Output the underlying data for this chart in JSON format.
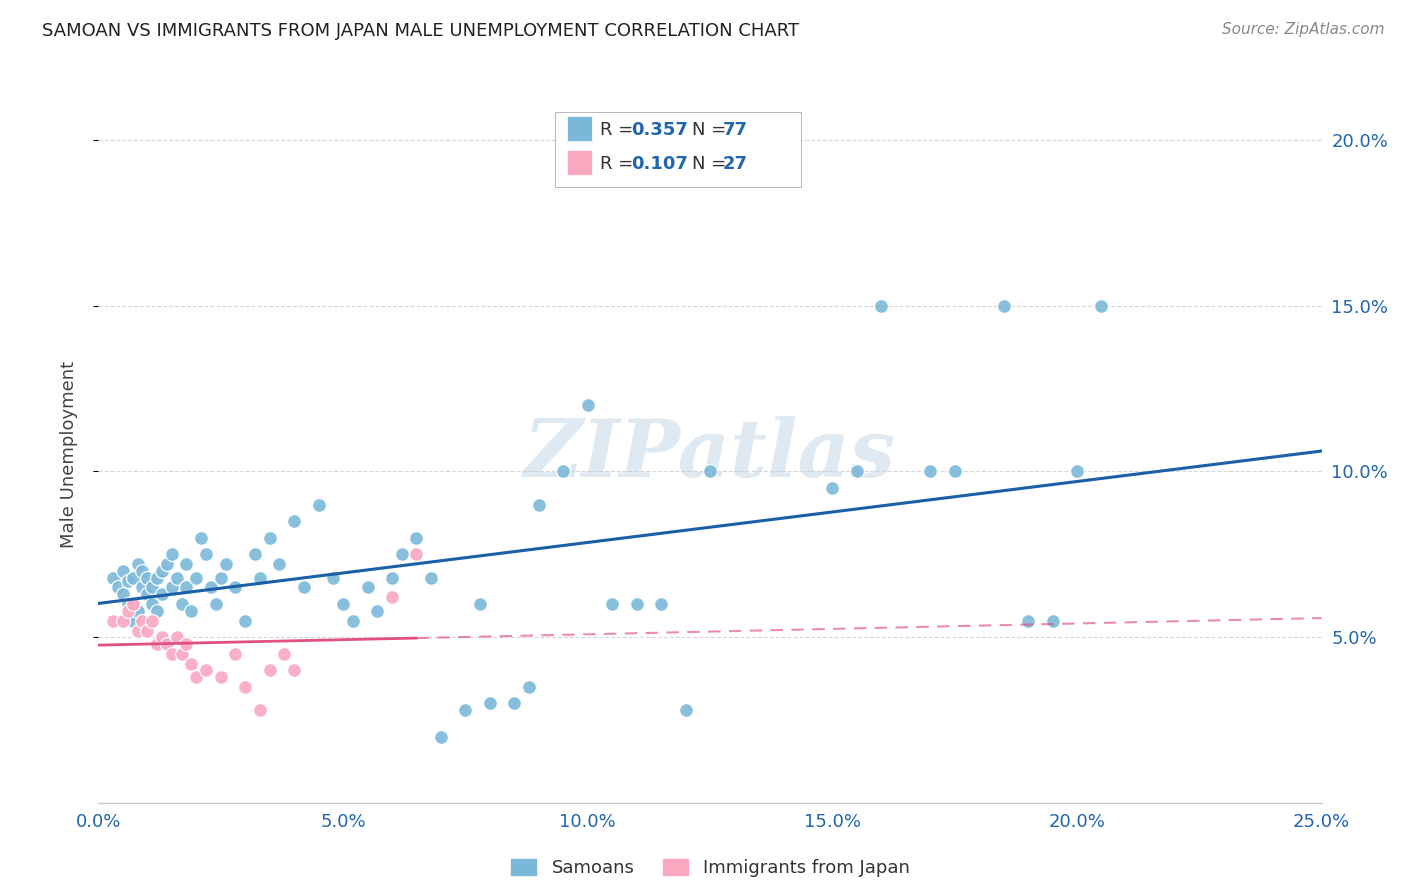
{
  "title": "SAMOAN VS IMMIGRANTS FROM JAPAN MALE UNEMPLOYMENT CORRELATION CHART",
  "source": "Source: ZipAtlas.com",
  "ylabel": "Male Unemployment",
  "xlim": [
    0.0,
    0.25
  ],
  "ylim": [
    0.0,
    0.21
  ],
  "yticks": [
    0.05,
    0.1,
    0.15,
    0.2
  ],
  "ytick_labels": [
    "5.0%",
    "10.0%",
    "15.0%",
    "20.0%"
  ],
  "xticks": [
    0.0,
    0.05,
    0.1,
    0.15,
    0.2,
    0.25
  ],
  "xtick_labels": [
    "0.0%",
    "5.0%",
    "10.0%",
    "15.0%",
    "20.0%",
    "25.0%"
  ],
  "legend_r_samoan": "0.357",
  "legend_n_samoan": "77",
  "legend_r_japan": "0.107",
  "legend_n_japan": "27",
  "samoan_color": "#7ab8d9",
  "samoan_line_color": "#1a5fa8",
  "japan_color": "#f9a8c0",
  "japan_line_color": "#e05080",
  "watermark": "ZIPatlas",
  "samoan_x": [
    0.003,
    0.004,
    0.005,
    0.005,
    0.006,
    0.006,
    0.007,
    0.007,
    0.008,
    0.008,
    0.009,
    0.009,
    0.01,
    0.01,
    0.011,
    0.011,
    0.012,
    0.012,
    0.013,
    0.013,
    0.014,
    0.015,
    0.015,
    0.016,
    0.017,
    0.018,
    0.018,
    0.019,
    0.02,
    0.021,
    0.022,
    0.023,
    0.024,
    0.025,
    0.026,
    0.028,
    0.03,
    0.032,
    0.033,
    0.035,
    0.037,
    0.04,
    0.042,
    0.045,
    0.048,
    0.05,
    0.052,
    0.055,
    0.057,
    0.06,
    0.062,
    0.065,
    0.068,
    0.07,
    0.075,
    0.078,
    0.08,
    0.085,
    0.088,
    0.09,
    0.095,
    0.1,
    0.105,
    0.11,
    0.115,
    0.12,
    0.125,
    0.15,
    0.155,
    0.16,
    0.17,
    0.175,
    0.185,
    0.19,
    0.195,
    0.2,
    0.205
  ],
  "samoan_y": [
    0.068,
    0.065,
    0.07,
    0.063,
    0.067,
    0.06,
    0.068,
    0.055,
    0.072,
    0.058,
    0.065,
    0.07,
    0.063,
    0.068,
    0.06,
    0.065,
    0.068,
    0.058,
    0.063,
    0.07,
    0.072,
    0.065,
    0.075,
    0.068,
    0.06,
    0.065,
    0.072,
    0.058,
    0.068,
    0.08,
    0.075,
    0.065,
    0.06,
    0.068,
    0.072,
    0.065,
    0.055,
    0.075,
    0.068,
    0.08,
    0.072,
    0.085,
    0.065,
    0.09,
    0.068,
    0.06,
    0.055,
    0.065,
    0.058,
    0.068,
    0.075,
    0.08,
    0.068,
    0.02,
    0.028,
    0.06,
    0.03,
    0.03,
    0.035,
    0.09,
    0.1,
    0.12,
    0.06,
    0.06,
    0.06,
    0.028,
    0.1,
    0.095,
    0.1,
    0.15,
    0.1,
    0.1,
    0.15,
    0.055,
    0.055,
    0.1,
    0.15
  ],
  "japan_x": [
    0.003,
    0.005,
    0.006,
    0.007,
    0.008,
    0.009,
    0.01,
    0.011,
    0.012,
    0.013,
    0.014,
    0.015,
    0.016,
    0.017,
    0.018,
    0.019,
    0.02,
    0.022,
    0.025,
    0.028,
    0.03,
    0.033,
    0.035,
    0.038,
    0.04,
    0.06,
    0.065
  ],
  "japan_y": [
    0.055,
    0.055,
    0.058,
    0.06,
    0.052,
    0.055,
    0.052,
    0.055,
    0.048,
    0.05,
    0.048,
    0.045,
    0.05,
    0.045,
    0.048,
    0.042,
    0.038,
    0.04,
    0.038,
    0.045,
    0.035,
    0.028,
    0.04,
    0.045,
    0.04,
    0.062,
    0.075
  ]
}
